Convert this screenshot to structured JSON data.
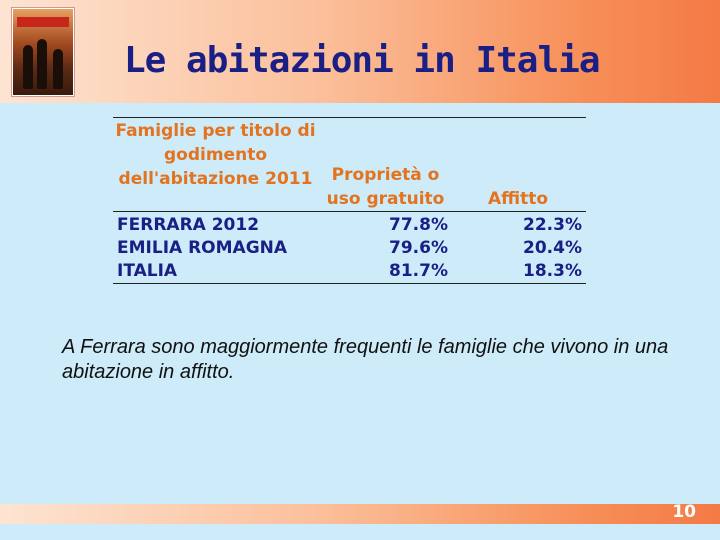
{
  "slide": {
    "title": "Le abitazioni in Italia",
    "caption": "A Ferrara sono maggiormente frequenti le famiglie che vivono in una abitazione in affitto.",
    "page_number": "10"
  },
  "table": {
    "headers": [
      "Famiglie per titolo di godimento dell'abitazione 2011",
      "Proprietà o uso gratuito",
      "Affitto"
    ],
    "rows": [
      {
        "label": "FERRARA 2012",
        "proprieta": "77.8%",
        "affitto": "22.3%"
      },
      {
        "label": "EMILIA ROMAGNA",
        "proprieta": "79.6%",
        "affitto": "20.4%"
      },
      {
        "label": "ITALIA",
        "proprieta": "81.7%",
        "affitto": "18.3%"
      }
    ]
  },
  "colors": {
    "title": "#1a1f86",
    "header_text": "#e3731e",
    "background": "#cdebf8",
    "bar_accent": "#f47a45"
  }
}
